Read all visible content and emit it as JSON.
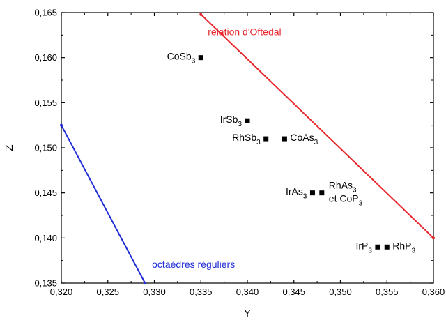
{
  "chart_data": {
    "type": "scatter",
    "title": "",
    "xlabel": "Y",
    "ylabel": "Z",
    "xlim": [
      0.32,
      0.36
    ],
    "ylim": [
      0.135,
      0.165
    ],
    "x_ticks": [
      "0,320",
      "0,325",
      "0,330",
      "0,335",
      "0,340",
      "0,345",
      "0,350",
      "0,355",
      "0,360"
    ],
    "y_ticks": [
      "0,135",
      "0,140",
      "0,145",
      "0,150",
      "0,155",
      "0,160",
      "0,165"
    ],
    "grid": false,
    "points": [
      {
        "id": "cosb3",
        "main": "CoSb",
        "sub": "3",
        "main2": "",
        "sub2": "",
        "x": 0.335,
        "y": 0.16,
        "label_pos": "left"
      },
      {
        "id": "irsb3",
        "main": "IrSb",
        "sub": "3",
        "main2": "",
        "sub2": "",
        "x": 0.34,
        "y": 0.153,
        "label_pos": "left"
      },
      {
        "id": "rhsb3",
        "main": "RhSb",
        "sub": "3",
        "main2": "",
        "sub2": "",
        "x": 0.342,
        "y": 0.151,
        "label_pos": "left"
      },
      {
        "id": "coas3",
        "main": "CoAs",
        "sub": "3",
        "main2": "",
        "sub2": "",
        "x": 0.344,
        "y": 0.151,
        "label_pos": "right"
      },
      {
        "id": "iras3",
        "main": "IrAs",
        "sub": "3",
        "main2": "",
        "sub2": "",
        "x": 0.347,
        "y": 0.145,
        "label_pos": "left"
      },
      {
        "id": "rhas3",
        "main": "RhAs",
        "sub": "3",
        "main2": "et CoP",
        "sub2": "3",
        "x": 0.348,
        "y": 0.145,
        "label_pos": "right-two-line"
      },
      {
        "id": "irp3",
        "main": "IrP",
        "sub": "3",
        "main2": "",
        "sub2": "",
        "x": 0.354,
        "y": 0.139,
        "label_pos": "left"
      },
      {
        "id": "rhp3",
        "main": "RhP",
        "sub": "3",
        "main2": "",
        "sub2": "",
        "x": 0.355,
        "y": 0.139,
        "label_pos": "right"
      }
    ],
    "lines": [
      {
        "id": "oftedal",
        "name": "relation d'Oftedal",
        "color": "#e8262b",
        "x": [
          0.335,
          0.36
        ],
        "y": [
          0.1648,
          0.14
        ]
      },
      {
        "id": "regular",
        "name": "octaèdres réguliers",
        "color": "#1e2bd6",
        "x": [
          0.32,
          0.329
        ],
        "y": [
          0.1525,
          0.135
        ]
      }
    ],
    "marker_color": "#000000"
  }
}
